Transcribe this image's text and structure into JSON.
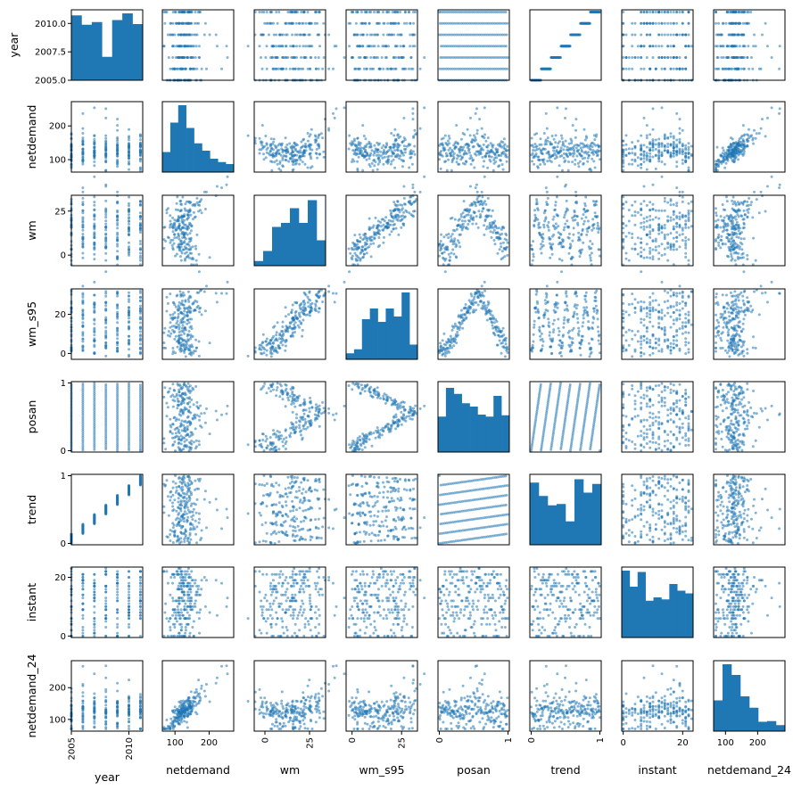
{
  "chart_data": {
    "type": "scatter",
    "title": "",
    "subtype": "scatter_matrix",
    "colors": {
      "marker": "#1f77b4",
      "frame": "#000000",
      "background": "#ffffff"
    },
    "variables": [
      {
        "name": "year",
        "label": "year",
        "range": [
          2005,
          2011.2
        ],
        "ticks": [
          2005,
          2010
        ],
        "y_ticks": [
          2005.0,
          2007.5,
          2010.0
        ],
        "y_tick_labels": [
          "2005.0",
          "2007.5",
          "2010.0"
        ],
        "x_tick_labels": [
          "2005",
          "2010"
        ],
        "x_ticks_rotated": true,
        "kind": "discrete",
        "levels": [
          2005,
          2006,
          2007,
          2008,
          2009,
          2010,
          2011
        ],
        "hist": [
          0.97,
          0.83,
          0.87,
          0.35,
          0.9,
          1.0,
          0.84
        ]
      },
      {
        "name": "netdemand",
        "label": "netdemand",
        "range": [
          63,
          272
        ],
        "ticks": [
          100,
          200
        ],
        "y_tick_labels": [
          "100",
          "200"
        ],
        "x_tick_labels": [
          "100",
          "200"
        ],
        "x_ticks_rotated": false,
        "kind": "continuous",
        "hist": [
          0.3,
          0.74,
          1.0,
          0.66,
          0.43,
          0.32,
          0.2,
          0.15,
          0.12
        ]
      },
      {
        "name": "wm",
        "label": "wm",
        "range": [
          -6,
          34
        ],
        "ticks": [
          0,
          25
        ],
        "y_tick_labels": [
          "0",
          "25"
        ],
        "x_tick_labels": [
          "0",
          "25"
        ],
        "x_ticks_rotated": true,
        "kind": "continuous",
        "hist": [
          0.07,
          0.22,
          0.58,
          0.64,
          0.86,
          0.64,
          0.98,
          0.38
        ]
      },
      {
        "name": "wm_s95",
        "label": "wm_s95",
        "range": [
          -3,
          33
        ],
        "ticks": [
          0,
          25
        ],
        "y_tick_labels": [
          "0",
          "20"
        ],
        "y_ticks": [
          0,
          20
        ],
        "x_tick_labels": [
          "0",
          "25"
        ],
        "x_ticks_rotated": true,
        "kind": "continuous",
        "hist": [
          0.09,
          0.15,
          0.6,
          0.76,
          0.56,
          0.76,
          0.64,
          1.0,
          0.22
        ]
      },
      {
        "name": "posan",
        "label": "posan",
        "range": [
          -0.02,
          1.02
        ],
        "ticks": [
          0,
          1
        ],
        "y_tick_labels": [
          "0",
          "1"
        ],
        "x_tick_labels": [
          "0",
          "1"
        ],
        "x_ticks_rotated": true,
        "kind": "continuous",
        "hist": [
          0.53,
          0.96,
          0.87,
          0.73,
          0.68,
          0.56,
          0.53,
          0.84,
          0.55
        ]
      },
      {
        "name": "trend",
        "label": "trend",
        "range": [
          -0.02,
          1.02
        ],
        "ticks": [
          0,
          1
        ],
        "y_tick_labels": [
          "0",
          "1"
        ],
        "x_tick_labels": [
          "0",
          "1"
        ],
        "x_ticks_rotated": true,
        "kind": "continuous",
        "hist": [
          0.93,
          0.73,
          0.59,
          0.61,
          0.35,
          0.98,
          0.78,
          0.91
        ]
      },
      {
        "name": "instant",
        "label": "instant",
        "range": [
          -0.5,
          23.5
        ],
        "ticks": [
          0,
          20
        ],
        "y_tick_labels": [
          "0",
          "20"
        ],
        "x_tick_labels": [
          "0",
          "20"
        ],
        "x_ticks_rotated": false,
        "kind": "discrete_int",
        "hist": [
          1.0,
          0.76,
          0.98,
          0.55,
          0.6,
          0.57,
          0.8,
          0.7,
          0.66
        ]
      },
      {
        "name": "netdemand_24",
        "label": "netdemand_24",
        "range": [
          63,
          285
        ],
        "ticks": [
          100,
          200
        ],
        "y_tick_labels": [
          "100",
          "200"
        ],
        "x_tick_labels": [
          "100",
          "200"
        ],
        "x_ticks_rotated": false,
        "kind": "continuous",
        "hist": [
          0.46,
          1.0,
          0.84,
          0.52,
          0.35,
          0.14,
          0.15,
          0.09
        ]
      }
    ],
    "n_points": 230,
    "note": "Scatter matrix of 8 variables; diagonal panels are histograms, off-diagonal panels are pairwise scatter plots."
  }
}
